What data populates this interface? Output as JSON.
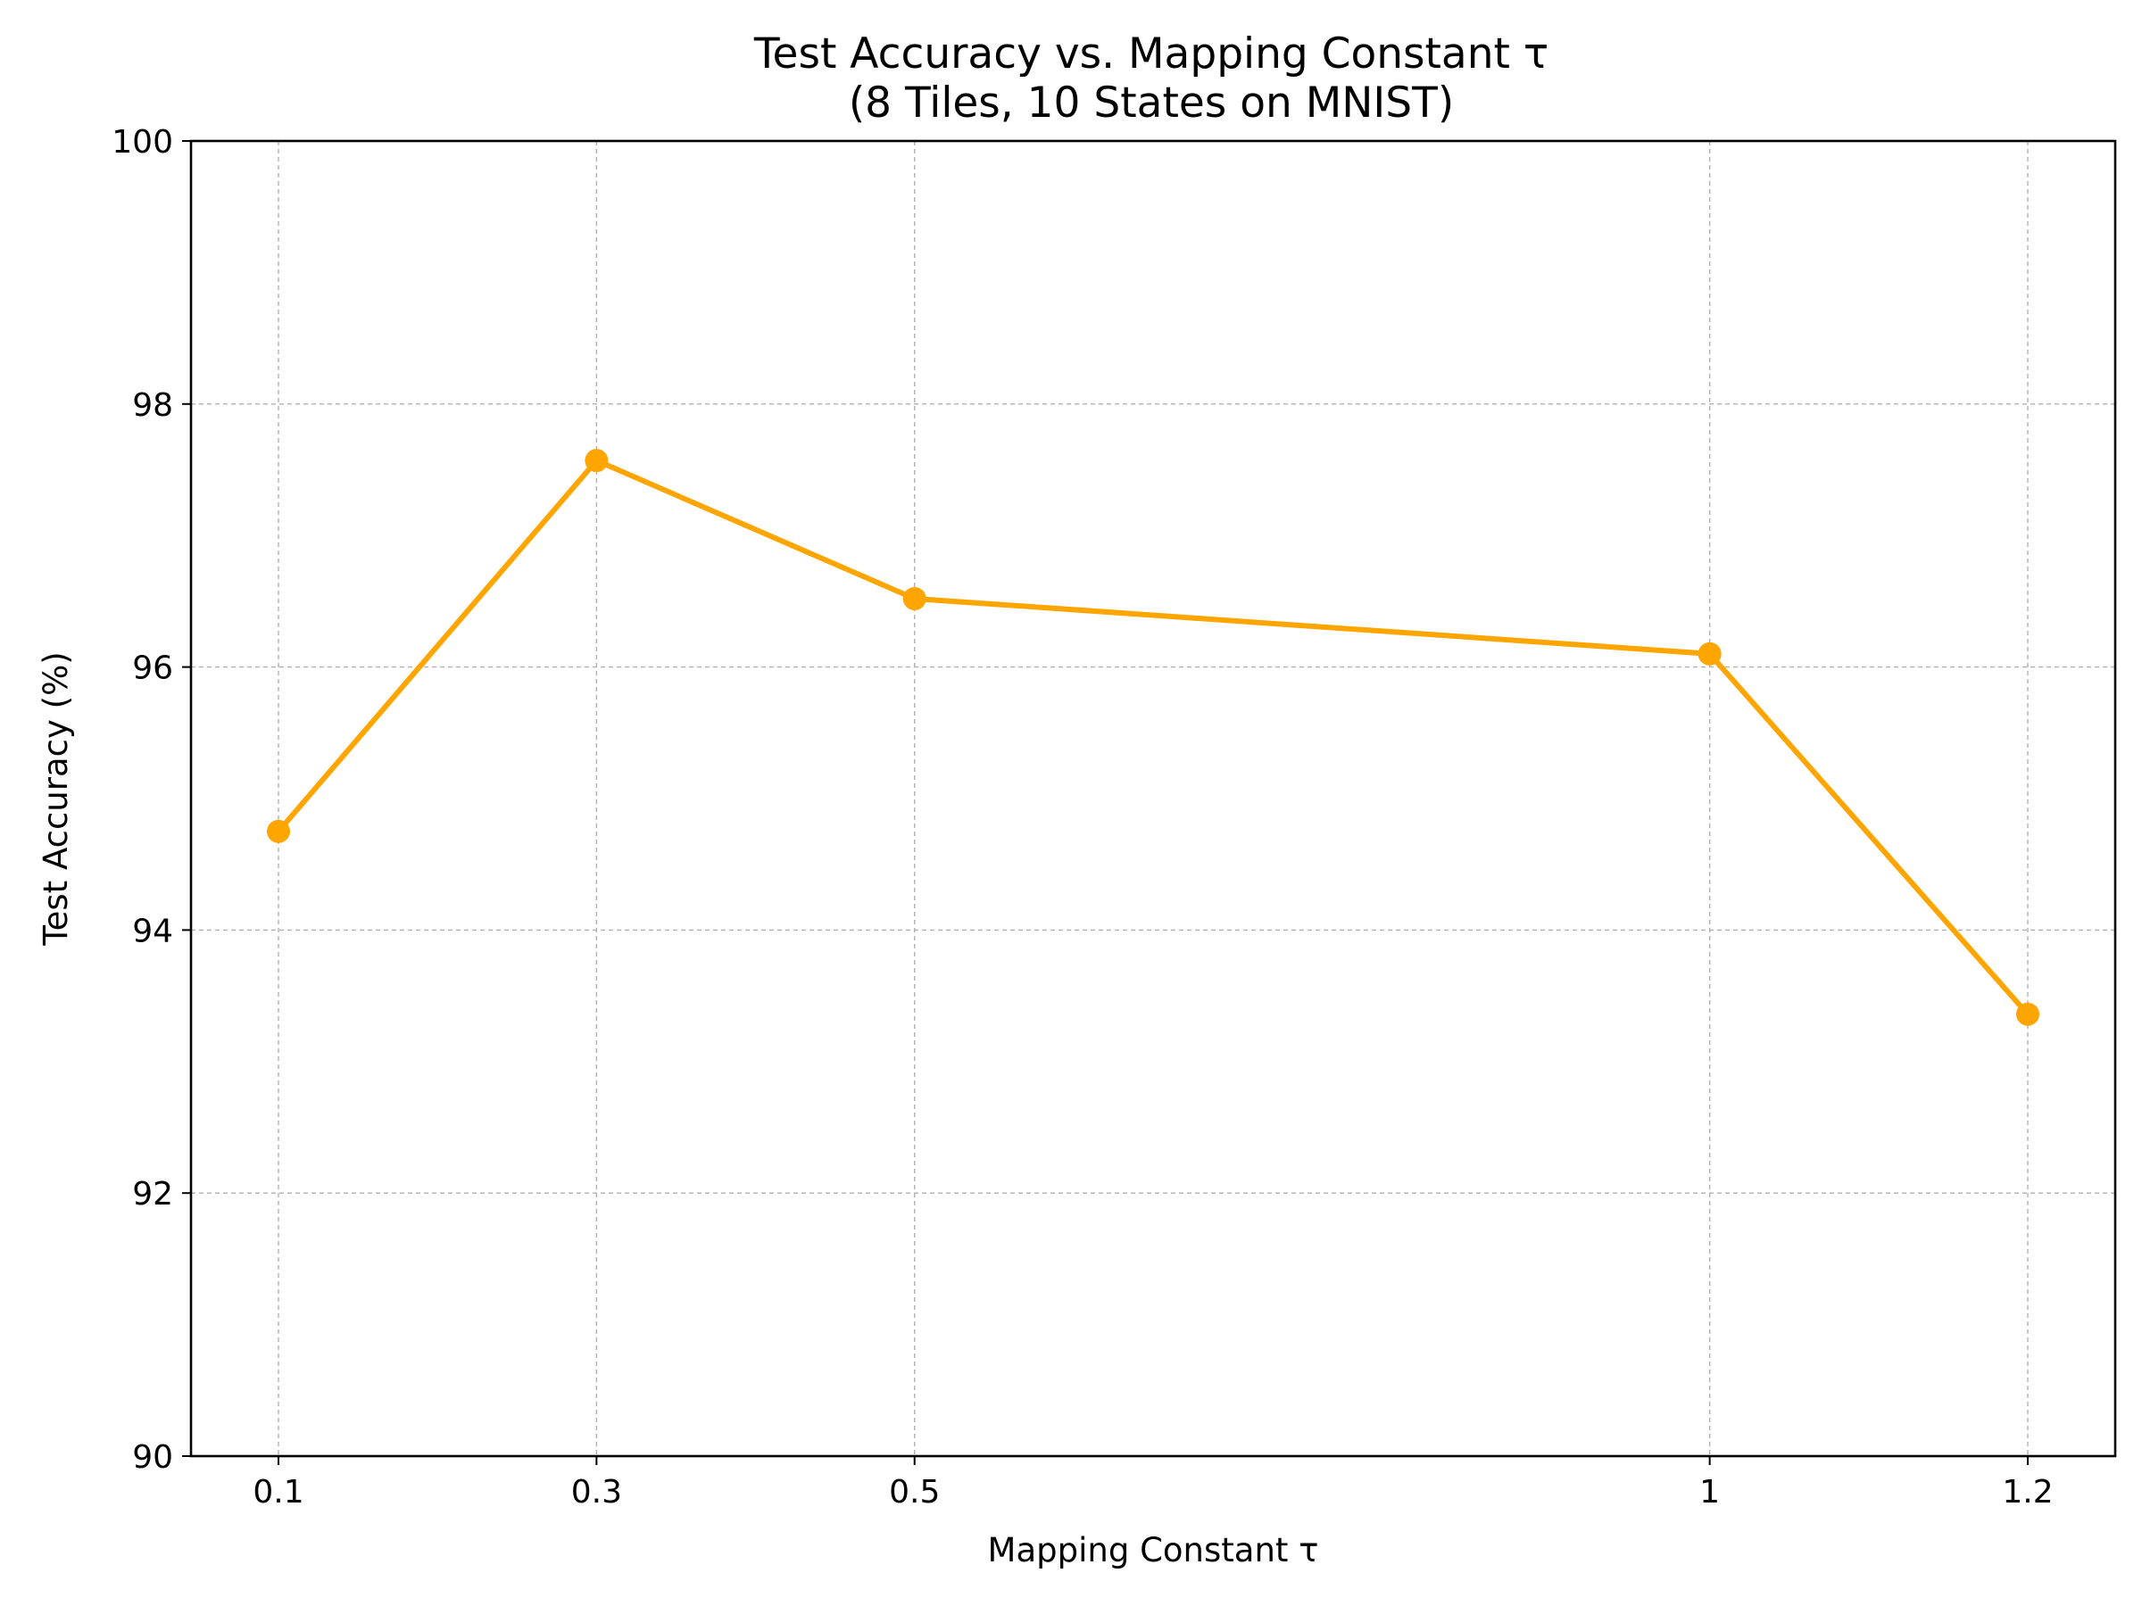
{
  "chart_data": {
    "type": "line",
    "title": "Test Accuracy vs. Mapping Constant τ",
    "subtitle": "(8 Tiles, 10 States on MNIST)",
    "xlabel": "Mapping Constant τ",
    "ylabel": "Test Accuracy (%)",
    "x": [
      0.1,
      0.3,
      0.5,
      1,
      1.2
    ],
    "x_tick_labels": [
      "0.1",
      "0.3",
      "0.5",
      "1",
      "1.2"
    ],
    "y_ticks": [
      90,
      92,
      94,
      96,
      98,
      100
    ],
    "y_tick_labels": [
      "90",
      "92",
      "94",
      "96",
      "98",
      "100"
    ],
    "xlim": [
      0.045,
      1.255
    ],
    "ylim": [
      90,
      100
    ],
    "series": [
      {
        "values": [
          94.75,
          97.57,
          96.52,
          96.1,
          93.36
        ],
        "color": "#ffa500",
        "marker": "circle"
      }
    ],
    "grid": true,
    "grid_style": "dashed",
    "legend": false
  }
}
